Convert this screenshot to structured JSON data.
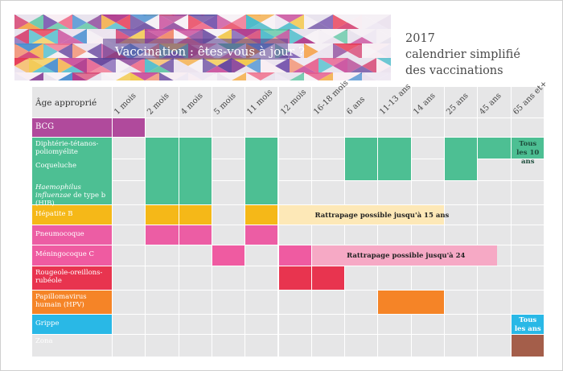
{
  "banner": {
    "title": "Vaccination : êtes-vous à jour ?"
  },
  "side_title": {
    "year": "2017",
    "line1": "calendrier simplifié",
    "line2": "des vaccinations"
  },
  "table": {
    "age_header": "Âge approprié",
    "ages": [
      "1 mois",
      "2 mois",
      "4 mois",
      "5 mois",
      "11 mois",
      "12 mois",
      "16-18 mois",
      "6 ans",
      "11-13 ans",
      "14 ans",
      "25 ans",
      "45 ans",
      "65 ans et+"
    ],
    "rows": [
      {
        "key": "bcg",
        "label": "BCG",
        "color": "#b04a9c"
      },
      {
        "key": "dtp",
        "label": "Diphtérie-tétanos-poliomyélite",
        "color": "#4dbf93"
      },
      {
        "key": "coq",
        "label": "Coqueluche",
        "color": "#4dbf93"
      },
      {
        "key": "hib",
        "label_italic": "Haemophilus influenzae",
        "label_rest": " de type b (HIB)",
        "color": "#4dbf93"
      },
      {
        "key": "hepb",
        "label": "Hépatite B",
        "color": "#f5b818"
      },
      {
        "key": "pneumo",
        "label": "Pneumocoque",
        "color": "#ec5da4"
      },
      {
        "key": "menc",
        "label": "Méningocoque C",
        "color": "#ef5ba1"
      },
      {
        "key": "ror",
        "label": "Rougeole-oreillons-rubéole",
        "color": "#e8344f"
      },
      {
        "key": "hpv",
        "label": "Papillomavirus humain (HPV)",
        "color": "#f58427"
      },
      {
        "key": "grippe",
        "label": "Grippe",
        "color": "#29b8e6"
      },
      {
        "key": "zona",
        "label": "Zona",
        "color": "#b0b0b0"
      }
    ],
    "notes": {
      "hepb": "Rattrapage possible jusqu'à 15 ans",
      "menc": "Rattrapage possible jusqu'à 24",
      "dtp_end_1": "Tous",
      "dtp_end_2": "les 10 ans",
      "grippe_end_1": "Tous",
      "grippe_end_2": "les ans"
    },
    "colors": {
      "cell_bg": "#e6e6e7",
      "bcg": "#b04a9c",
      "green": "#4dbf93",
      "hepb": "#f5b818",
      "hepb_light": "#fde8b7",
      "pneumo": "#ec5da4",
      "menc": "#ef5ba1",
      "menc_light": "#f6a9c5",
      "ror": "#e8344f",
      "hpv": "#f58427",
      "grippe": "#29b8e6",
      "zona": "#a45e4a"
    }
  }
}
